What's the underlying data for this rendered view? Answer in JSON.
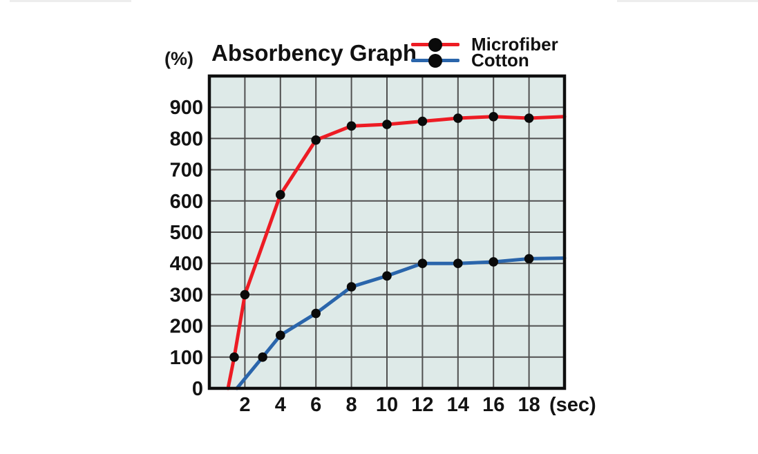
{
  "page": {
    "background": "#ffffff",
    "top_strip_color": "#ededed"
  },
  "header": {
    "y_unit_label": "(%)",
    "title": "Absorbency Graph"
  },
  "legend": {
    "marker_icon": "black-dot",
    "entries": [
      {
        "label": "Microfiber",
        "color": "#ed1c24"
      },
      {
        "label": "Cotton",
        "color": "#2a65ab"
      }
    ]
  },
  "chart_data": {
    "type": "line",
    "title": "Absorbency Graph",
    "xlabel": "(sec)",
    "ylabel": "(%)",
    "xlim": [
      0,
      20
    ],
    "ylim": [
      0,
      1000
    ],
    "x_ticks": [
      2,
      4,
      6,
      8,
      10,
      12,
      14,
      16,
      18
    ],
    "y_ticks": [
      0,
      100,
      200,
      300,
      400,
      500,
      600,
      700,
      800,
      900
    ],
    "grid": true,
    "legend_position": "top-right-of-title",
    "plot_bg": "#deeae8",
    "grid_color": "#505050",
    "border_color": "#0e0e0e",
    "marker_color": "#0a0a0a",
    "series": [
      {
        "name": "Microfiber",
        "color": "#ed1c24",
        "points": [
          [
            1.4,
            100
          ],
          [
            2,
            300
          ],
          [
            4,
            620
          ],
          [
            6,
            795
          ],
          [
            8,
            840
          ],
          [
            10,
            845
          ],
          [
            12,
            855
          ],
          [
            14,
            865
          ],
          [
            16,
            870
          ],
          [
            18,
            865
          ]
        ],
        "line_start": [
          1.05,
          0
        ],
        "line_end": [
          20,
          870
        ]
      },
      {
        "name": "Cotton",
        "color": "#2a65ab",
        "points": [
          [
            3,
            100
          ],
          [
            4,
            170
          ],
          [
            6,
            240
          ],
          [
            8,
            325
          ],
          [
            10,
            360
          ],
          [
            12,
            400
          ],
          [
            14,
            400
          ],
          [
            16,
            405
          ],
          [
            18,
            415
          ]
        ],
        "line_start": [
          1.55,
          0
        ],
        "line_end": [
          20,
          417
        ]
      }
    ]
  }
}
